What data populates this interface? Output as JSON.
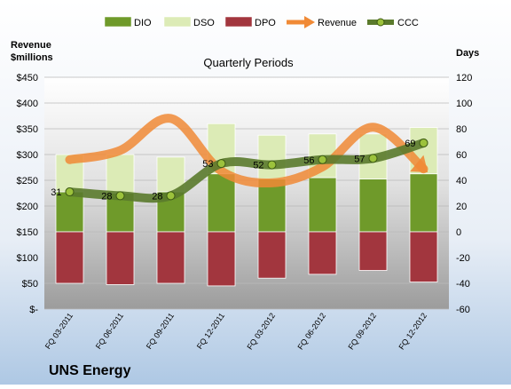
{
  "chart_data": {
    "type": "bar",
    "title": "Quarterly Periods",
    "company": "UNS Energy",
    "left_axis_label": [
      "Revenue",
      "$millions"
    ],
    "right_axis_label": "Days",
    "categories": [
      "FQ 03-2011",
      "FQ 06-2011",
      "FQ 09-2011",
      "FQ 12-2011",
      "FQ 03-2012",
      "FQ 06-2012",
      "FQ 09-2012",
      "FQ 12-2012"
    ],
    "left_ticks": [
      "$-",
      "$50",
      "$100",
      "$150",
      "$200",
      "$250",
      "$300",
      "$350",
      "$400",
      "$450"
    ],
    "right_ticks": [
      "-60",
      "-40",
      "-20",
      "0",
      "20",
      "40",
      "60",
      "80",
      "100",
      "120"
    ],
    "left_ylim": [
      0,
      450
    ],
    "right_ylim": [
      -60,
      120
    ],
    "legend_position": "top",
    "grid": true,
    "series": [
      {
        "name": "DIO",
        "kind": "bar-up",
        "axis": "right",
        "color": "#6f9a2a",
        "values": [
          31,
          30,
          31,
          45,
          41,
          42,
          41,
          45
        ]
      },
      {
        "name": "DSO",
        "kind": "bar-up-stacked",
        "axis": "right",
        "color": "#dcebb6",
        "values": [
          29,
          30,
          27,
          39,
          34,
          34,
          35,
          36
        ]
      },
      {
        "name": "DPO",
        "kind": "bar-down",
        "axis": "right",
        "color": "#a2363e",
        "values": [
          -40,
          -41,
          -40,
          -42,
          -36,
          -33,
          -30,
          -39
        ]
      },
      {
        "name": "Revenue",
        "kind": "line",
        "axis": "left",
        "color": "#f08a36",
        "values": [
          290,
          308,
          370,
          268,
          245,
          276,
          353,
          272
        ]
      },
      {
        "name": "CCC",
        "kind": "line",
        "axis": "right",
        "color": "#5a7a2c",
        "values": [
          31,
          28,
          28,
          53,
          52,
          56,
          57,
          69
        ]
      }
    ],
    "data_labels": [
      "31",
      "28",
      "28",
      "53",
      "52",
      "56",
      "57",
      "69"
    ]
  }
}
